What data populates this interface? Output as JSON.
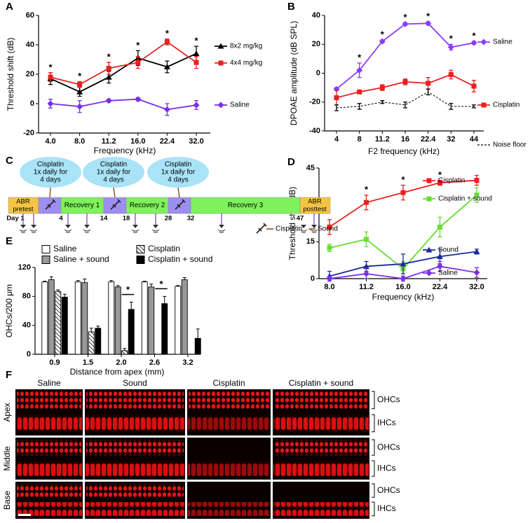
{
  "chart_data": [
    {
      "panel": "A",
      "type": "line",
      "x_label": "Frequency (kHz)",
      "y_label": "Threshold shift (dB)",
      "categories": [
        "4.0",
        "8.0",
        "11.2",
        "16.0",
        "22.4",
        "32.0"
      ],
      "series": [
        {
          "name": "8x2 mg/kg",
          "color": "#000000",
          "marker": "triangle",
          "values": [
            17,
            8,
            18,
            31,
            25,
            34
          ],
          "errors": [
            4,
            3,
            4,
            5,
            4,
            5
          ]
        },
        {
          "name": "4x4 mg/kg",
          "color": "#e8201e",
          "marker": "square",
          "values": [
            18,
            13,
            24,
            28,
            42,
            28
          ],
          "errors": [
            3,
            2,
            4,
            4,
            2,
            4
          ]
        },
        {
          "name": "Saline",
          "color": "#7a2ee8",
          "marker": "diamond",
          "values": [
            0,
            -2,
            2,
            3,
            -4,
            -1
          ],
          "errors": [
            3,
            4,
            1,
            1,
            4,
            3
          ]
        }
      ],
      "significance": [
        "*",
        "*",
        "*",
        "*",
        "*",
        "*"
      ],
      "ylim": [
        -20,
        60
      ],
      "yticks": [
        -20,
        0,
        20,
        40,
        60
      ]
    },
    {
      "panel": "B",
      "type": "line",
      "x_label": "F2 frequency (kHz)",
      "y_label": "DPOAE amplitude (dB SPL)",
      "categories": [
        "4",
        "8",
        "11.2",
        "16",
        "22.4",
        "32",
        "44"
      ],
      "series": [
        {
          "name": "Saline",
          "color": "#8a3cff",
          "marker": "diamond",
          "values": [
            -11,
            2,
            22,
            34,
            34.5,
            18,
            21
          ],
          "errors": [
            1,
            5,
            1,
            1,
            1,
            2,
            1
          ]
        },
        {
          "name": "Cisplatin",
          "color": "#e8201e",
          "marker": "square",
          "values": [
            -17,
            -13,
            -10,
            -6,
            -7,
            -1,
            -9
          ],
          "errors": [
            5,
            1,
            2,
            2,
            4,
            3,
            4
          ]
        },
        {
          "name": "Noise floor",
          "color": "#000000",
          "marker": "none",
          "dashed": true,
          "values": [
            -24,
            -23,
            -20,
            -22,
            -13,
            -23,
            -23
          ],
          "errors": [
            2,
            2,
            1,
            2,
            2,
            2,
            1
          ]
        }
      ],
      "significance": [
        null,
        "*",
        "*",
        "*",
        "*",
        "*",
        "*"
      ],
      "ylim": [
        -40,
        40
      ],
      "yticks": [
        -40,
        -20,
        0,
        20,
        40
      ]
    },
    {
      "panel": "D",
      "type": "line",
      "x_label": "Frequency (kHz)",
      "y_label": "Threshold shift (dB)",
      "categories": [
        "8.0",
        "11.2",
        "16.0",
        "22.4",
        "32.0"
      ],
      "series": [
        {
          "name": "Cisplatin",
          "color": "#e8201e",
          "marker": "square",
          "values": [
            21,
            31,
            35,
            39,
            40
          ],
          "errors": [
            3,
            3,
            3,
            1,
            2
          ]
        },
        {
          "name": "Cisplatin + sound",
          "color": "#66dd33",
          "marker": "square",
          "values": [
            12.5,
            16,
            4,
            21,
            34
          ],
          "errors": [
            1.5,
            3,
            3,
            4,
            3
          ]
        },
        {
          "name": "Sound",
          "color": "#1a2a9a",
          "marker": "triangle",
          "values": [
            1,
            5,
            6,
            9,
            11
          ],
          "errors": [
            2,
            2,
            4,
            3,
            1
          ]
        },
        {
          "name": "Saline",
          "color": "#7a2ee8",
          "marker": "diamond",
          "values": [
            0,
            2,
            0,
            5,
            2.5
          ],
          "errors": [
            1,
            2,
            1,
            2,
            2
          ]
        }
      ],
      "significance": [
        null,
        "*",
        "*",
        "*",
        null
      ],
      "ylim": [
        0,
        45
      ],
      "yticks": [
        0,
        15,
        30,
        45
      ]
    },
    {
      "panel": "E",
      "type": "bar",
      "x_label": "Distance from apex (mm)",
      "y_label": "OHCs/200 μm",
      "categories": [
        "0.9",
        "1.5",
        "2.0",
        "2.6",
        "3.2"
      ],
      "series": [
        {
          "name": "Saline",
          "color": "#ffffff",
          "values": [
            100,
            100,
            100,
            100,
            94
          ],
          "errors": [
            1,
            2,
            2,
            1,
            1
          ]
        },
        {
          "name": "Saline + sound",
          "color": "#999999",
          "values": [
            103,
            99,
            93,
            93,
            103
          ],
          "errors": [
            4,
            5,
            2,
            4,
            3
          ]
        },
        {
          "name": "Cisplatin",
          "color": "#ffffff",
          "pattern": "hatch",
          "values": [
            87,
            31,
            5,
            null,
            null
          ],
          "errors": [
            2,
            5,
            3,
            null,
            null
          ]
        },
        {
          "name": "Cisplatin + sound",
          "color": "#000000",
          "values": [
            79,
            36,
            62,
            70,
            22
          ],
          "errors": [
            4,
            3,
            10,
            10,
            13
          ]
        }
      ],
      "significance": [
        null,
        null,
        "*",
        "*",
        null
      ],
      "ylim": [
        0,
        120
      ],
      "yticks": [
        0,
        40,
        80,
        120
      ]
    }
  ],
  "timeline": {
    "panel": "C",
    "dose_label": [
      "Cisplatin",
      "1x daily for",
      "4 days"
    ],
    "pretest": [
      "ABR",
      "pretest"
    ],
    "recovery": [
      "Recovery 1",
      "Recovery 2",
      "Recovery 3"
    ],
    "posttest": [
      "ABR",
      "posttest"
    ],
    "days": [
      "Day 1",
      "4",
      "14",
      "18",
      "28",
      "32",
      "47"
    ],
    "legend": [
      "Cisplatin",
      "Sound"
    ]
  },
  "micrographs": {
    "panel": "F",
    "columns": [
      "Saline",
      "Sound",
      "Cisplatin",
      "Cisplatin + sound"
    ],
    "rows": [
      "Apex",
      "Middle",
      "Base"
    ],
    "cell_labels": [
      "OHCs",
      "IHCs"
    ]
  }
}
